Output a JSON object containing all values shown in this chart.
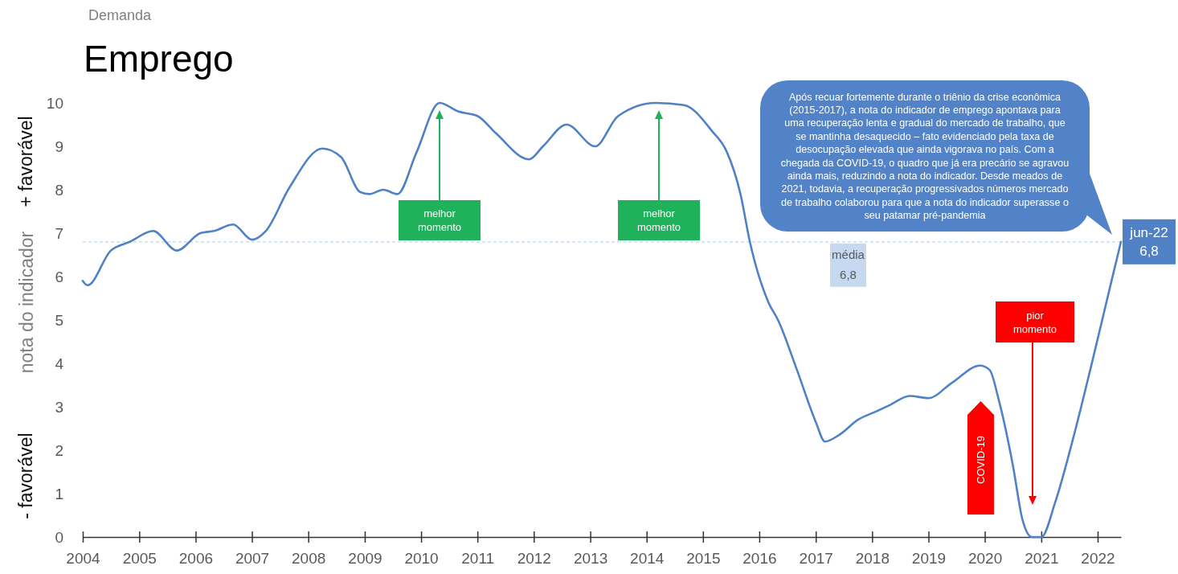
{
  "chart_data": {
    "type": "line",
    "title": "Emprego",
    "subtitle": "Demanda",
    "ylabel": "nota do indicador",
    "x": [
      "2004-01",
      "2004-02",
      "2004-07",
      "2004-11",
      "2005-04",
      "2005-09",
      "2006-02",
      "2006-05",
      "2006-09",
      "2007-01",
      "2007-04",
      "2007-09",
      "2008-04",
      "2008-08",
      "2008-12",
      "2009-02",
      "2009-05",
      "2009-08",
      "2009-12",
      "2010-05",
      "2010-09",
      "2011-01",
      "2011-05",
      "2011-12",
      "2012-03",
      "2012-08",
      "2013-02",
      "2013-07",
      "2014-03",
      "2014-09",
      "2015-03",
      "2015-06",
      "2015-09",
      "2015-11",
      "2016-03",
      "2016-05",
      "2016-09",
      "2017-01",
      "2017-03",
      "2017-06",
      "2017-10",
      "2018-02",
      "2018-05",
      "2018-09",
      "2019-01",
      "2019-06",
      "2019-12",
      "2020-02",
      "2020-04",
      "2020-07",
      "2020-09",
      "2020-11",
      "2021-01",
      "2021-04",
      "2021-08",
      "2021-12",
      "2022-04",
      "2022-06"
    ],
    "series": [
      {
        "color": "#4f81c7",
        "values": [
          5.9,
          5.8,
          6.6,
          6.8,
          7.05,
          6.6,
          7.0,
          7.05,
          7.2,
          6.85,
          7.05,
          8.05,
          8.95,
          8.75,
          7.95,
          7.9,
          8.0,
          7.9,
          8.85,
          10.0,
          9.8,
          9.7,
          9.3,
          8.7,
          9.0,
          9.5,
          9.0,
          9.7,
          10.0,
          9.95,
          9.35,
          8.9,
          7.9,
          6.8,
          5.4,
          5.0,
          3.85,
          2.65,
          2.2,
          2.35,
          2.7,
          2.9,
          3.05,
          3.25,
          3.2,
          3.55,
          3.95,
          3.85,
          3.15,
          1.65,
          0.4,
          0.0,
          0.0,
          0.8,
          2.35,
          4.1,
          5.9,
          6.8
        ]
      }
    ],
    "xlim": [
      "2004",
      "2022-06"
    ],
    "xticks": [
      "2004",
      "2005",
      "2006",
      "2007",
      "2008",
      "2009",
      "2010",
      "2011",
      "2012",
      "2013",
      "2014",
      "2015",
      "2016",
      "2017",
      "2018",
      "2019",
      "2020",
      "2021",
      "2022"
    ],
    "ylim": [
      0,
      10
    ],
    "yticks": [
      0,
      1,
      2,
      3,
      4,
      5,
      6,
      7,
      8,
      9,
      10
    ],
    "ref_lines": [
      {
        "axis": "y",
        "value": 6.8,
        "label": "média 6,8",
        "color": "#bdd7ee",
        "line_style": "dashed"
      }
    ],
    "annotations": [
      "+ favorável",
      "- favorável",
      "melhor momento",
      "melhor momento",
      "COVID-19",
      "pior momento",
      {
        "text": "jun-22 6,8",
        "x": "2022-06",
        "y": 6.8
      },
      "Após recuar fortemente durante o triênio da crise econômica (2015-2017), a nota do indicador de emprego apontava para uma recuperação lenta e gradual do mercado de trabalho, que se mantinha desaquecido – fato evidenciado pela taxa de desocupação elevada que ainda vigorava no país. Com a chegada da COVID-19, o quadro que já era precário se agravou ainda mais, reduzindo a nota do indicador. Desde meados de 2021, todavia, a recuperação progressivados números mercado de trabalho colaborou para que a nota do indicador superasse o seu patamar pré-pandemia"
    ]
  }
}
